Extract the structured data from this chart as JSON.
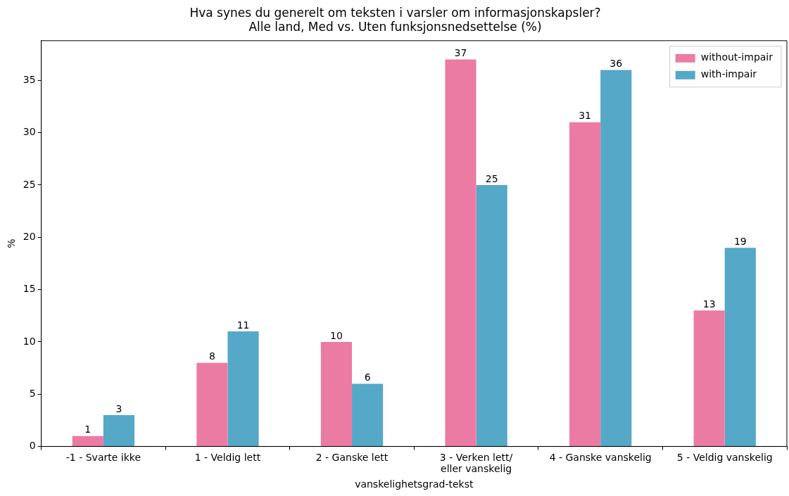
{
  "chart_data": {
    "type": "bar",
    "title": "Hva synes du generelt om teksten i varsler om informasjonskapsler?",
    "subtitle": "Alle land, Med vs. Uten funksjonsnedsettelse (%)",
    "xlabel": "vanskelighetsgrad-tekst",
    "ylabel": "%",
    "categories": [
      "-1 - Svarte ikke",
      "1 - Veldig lett",
      "2 - Ganske lett",
      "3 - Verken lett/\neller vanskelig",
      "4 - Ganske vanskelig",
      "5 - Veldig vanskelig"
    ],
    "series": [
      {
        "name": "without-impair",
        "color": "#ec7ba4",
        "values": [
          1,
          8,
          10,
          37,
          31,
          13
        ]
      },
      {
        "name": "with-impair",
        "color": "#55a8c8",
        "values": [
          3,
          11,
          6,
          25,
          36,
          19
        ]
      }
    ],
    "ylim": [
      0,
      38.8
    ],
    "yticks": [
      0,
      5,
      10,
      15,
      20,
      25,
      30,
      35
    ],
    "grid": false,
    "legend": "top right",
    "data_labels": true
  }
}
